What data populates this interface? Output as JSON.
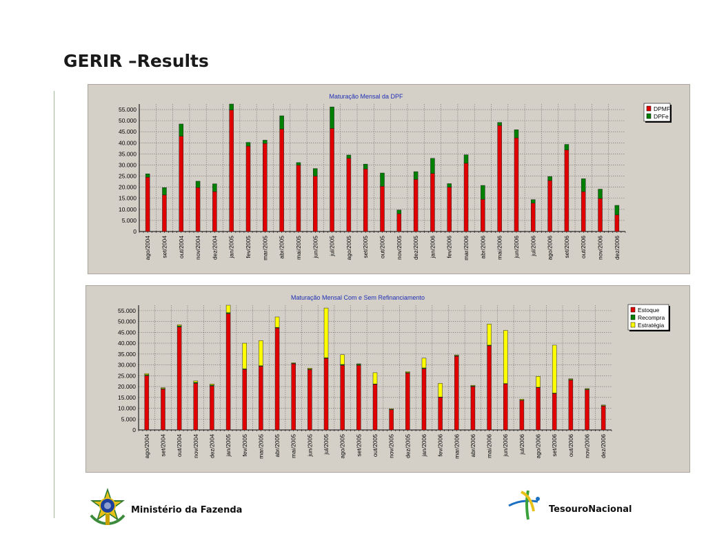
{
  "slide": {
    "title": "GERIR –Results"
  },
  "footer": {
    "ministry": "Ministério da Fazenda",
    "treasury": "TesouroNacional",
    "crest_icon": "brazil-coat-of-arms-icon",
    "treasury_icon": "tesouro-nacional-logo-icon"
  },
  "colors": {
    "panel_bg": "#d4d0c8",
    "red": "#e10000",
    "green": "#008000",
    "yellow": "#ffff00",
    "title": "#1f2fb4"
  },
  "chart_data": [
    {
      "type": "bar",
      "stacked": true,
      "title": "Maturação Mensal da DPF",
      "xlabel": "",
      "ylabel": "",
      "ylim": [
        0,
        57500
      ],
      "yticks": [
        0,
        5000,
        10000,
        15000,
        20000,
        25000,
        30000,
        35000,
        40000,
        45000,
        50000,
        55000
      ],
      "ytick_labels": [
        "0",
        "5.000",
        "10.000",
        "15.000",
        "20.000",
        "25.000",
        "30.000",
        "35.000",
        "40.000",
        "45.000",
        "50.000",
        "55.000"
      ],
      "grid": true,
      "legend": "top-right",
      "categories": [
        "ago/2004",
        "set/2004",
        "out/2004",
        "nov/2004",
        "dez/2004",
        "jan/2005",
        "fev/2005",
        "mar/2005",
        "abr/2005",
        "mai/2005",
        "jun/2005",
        "jul/2005",
        "ago/2005",
        "set/2005",
        "out/2005",
        "nov/2005",
        "dez/2005",
        "jan/2006",
        "fev/2006",
        "mar/2006",
        "abr/2006",
        "mai/2006",
        "jun/2006",
        "jul/2006",
        "ago/2006",
        "set/2006",
        "out/2006",
        "nov/2006",
        "dez/2006"
      ],
      "series": [
        {
          "name": "DPMFi",
          "color": "#e10000",
          "values": [
            24500,
            16500,
            43000,
            19800,
            18000,
            54800,
            38500,
            39700,
            46200,
            29900,
            25000,
            46500,
            33000,
            28200,
            20400,
            8000,
            23500,
            26200,
            20000,
            30800,
            14500,
            47800,
            42200,
            12800,
            23000,
            36800,
            18000,
            14900,
            7500
          ]
        },
        {
          "name": "DPFe",
          "color": "#008000",
          "values": [
            1500,
            3300,
            5500,
            2900,
            3500,
            2700,
            1700,
            1500,
            6000,
            1200,
            3400,
            9700,
            1500,
            2200,
            6000,
            1700,
            3500,
            6800,
            1600,
            3800,
            6300,
            1400,
            3700,
            1600,
            1800,
            2500,
            5800,
            4200,
            4300
          ]
        }
      ]
    },
    {
      "type": "bar",
      "stacked": true,
      "title": "Maturação Mensal Com e Sem Refinanciamento",
      "xlabel": "",
      "ylabel": "",
      "ylim": [
        0,
        57500
      ],
      "yticks": [
        0,
        5000,
        10000,
        15000,
        20000,
        25000,
        30000,
        35000,
        40000,
        45000,
        50000,
        55000
      ],
      "ytick_labels": [
        "0",
        "5.000",
        "10.000",
        "15.000",
        "20.000",
        "25.000",
        "30.000",
        "35.000",
        "40.000",
        "45.000",
        "50.000",
        "55.000"
      ],
      "grid": true,
      "legend": "top-right",
      "categories": [
        "ago/2004",
        "set/2004",
        "out/2004",
        "nov/2004",
        "dez/2004",
        "jan/2005",
        "fev/2005",
        "mar/2005",
        "abr/2005",
        "mai/2005",
        "jun/2005",
        "jul/2005",
        "ago/2005",
        "set/2005",
        "out/2005",
        "nov/2005",
        "dez/2005",
        "jan/2006",
        "fev/2006",
        "mar/2006",
        "abr/2006",
        "mai/2006",
        "jun/2006",
        "jul/2006",
        "ago/2006",
        "set/2006",
        "out/2006",
        "nov/2006",
        "dez/2006"
      ],
      "series": [
        {
          "name": "Estoque",
          "color": "#e10000",
          "values": [
            25000,
            18800,
            47500,
            21500,
            20300,
            53600,
            27900,
            29300,
            47000,
            30500,
            27800,
            33000,
            29800,
            29800,
            21000,
            9300,
            26200,
            28200,
            15000,
            34000,
            20000,
            38800,
            21200,
            13600,
            19500,
            16800,
            23000,
            18500,
            11000
          ]
        },
        {
          "name": "Recompra",
          "color": "#008000",
          "values": [
            500,
            300,
            500,
            500,
            400,
            500,
            300,
            300,
            300,
            200,
            300,
            300,
            400,
            500,
            200,
            200,
            300,
            400,
            200,
            300,
            300,
            300,
            200,
            200,
            200,
            200,
            300,
            300,
            200
          ]
        },
        {
          "name": "Estratégia",
          "color": "#ffff00",
          "values": [
            500,
            400,
            500,
            600,
            500,
            3400,
            11800,
            11600,
            4800,
            300,
            400,
            22900,
            4500,
            200,
            5200,
            300,
            400,
            4500,
            6300,
            300,
            300,
            9700,
            24500,
            400,
            5000,
            22100,
            300,
            300,
            300
          ]
        }
      ]
    }
  ]
}
